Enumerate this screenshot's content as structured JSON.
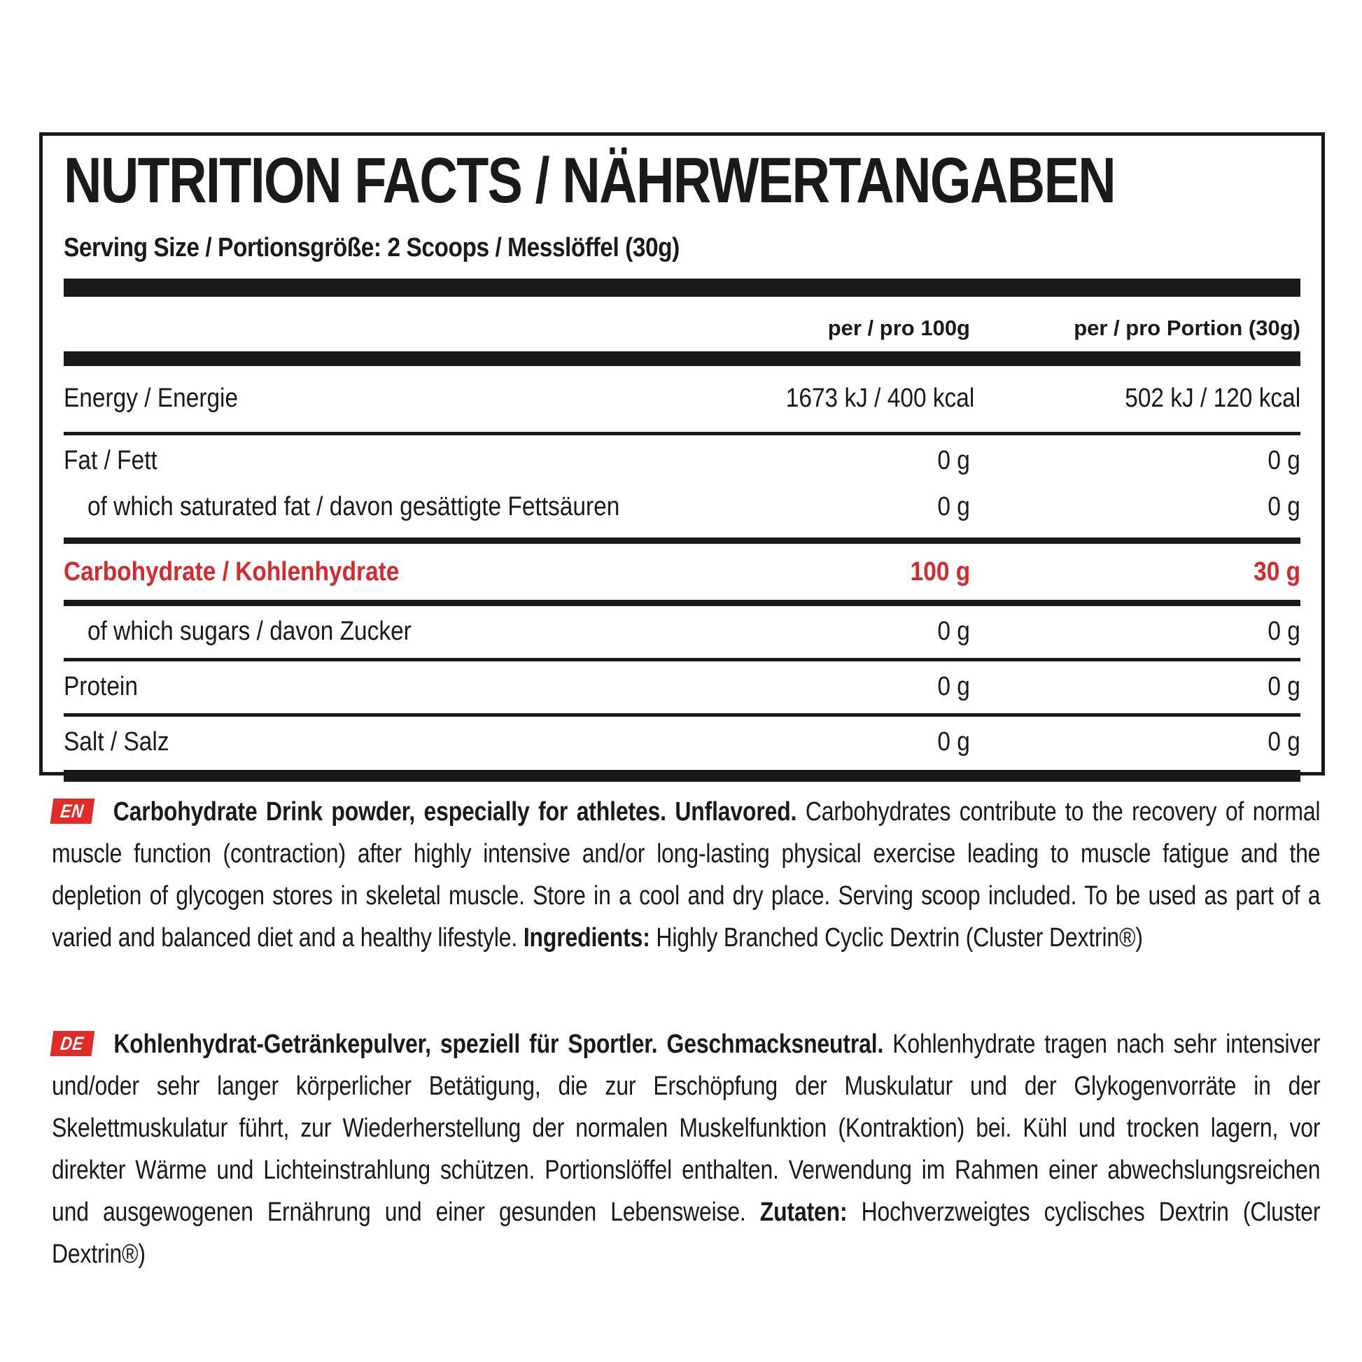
{
  "colors": {
    "accent_red": "#d6282e",
    "badge_red": "#e02b26",
    "ink_black": "#1c1a18"
  },
  "panel": {
    "title": "NUTRITION FACTS / NÄHRWERTANGABEN",
    "serving_line": "Serving Size / Portionsgröße: 2 Scoops / Messlöffel (30g)",
    "columns": [
      "per / pro 100g",
      "per / pro Portion (30g)"
    ],
    "rows": [
      {
        "label": "Energy / Energie",
        "per_100g": "1673 kJ / 400 kcal",
        "per_portion": "502 kJ / 120 kcal"
      },
      {
        "label": "Fat / Fett",
        "per_100g": "0 g",
        "per_portion": "0 g"
      },
      {
        "label": "of which saturated fat / davon gesättigte Fettsäuren",
        "per_100g": "0 g",
        "per_portion": "0 g"
      },
      {
        "label": "Carbohydrate / Kohlenhydrate",
        "per_100g": "100 g",
        "per_portion": "30 g"
      },
      {
        "label": "of which sugars / davon Zucker",
        "per_100g": "0 g",
        "per_portion": "0 g"
      },
      {
        "label": "Protein",
        "per_100g": "0 g",
        "per_portion": "0 g"
      },
      {
        "label": "Salt / Salz",
        "per_100g": "0 g",
        "per_portion": "0 g"
      }
    ]
  },
  "paragraphs": {
    "en": {
      "badge": "EN",
      "lead": "Carbohydrate Drink powder, especially for athletes. Unflavored.",
      "body": "Carbohydrates contribute to the recovery of normal muscle function (contraction) after highly intensive and/or long-lasting physical exercise leading to muscle fatigue and the depletion of glycogen stores in skeletal muscle. Store in a cool and dry place. Serving scoop included. To be used as part of a varied and balanced diet and a healthy lifestyle.",
      "ingredients_label": "Ingredients:",
      "ingredients": "Highly Branched Cyclic Dextrin (Cluster Dextrin®)"
    },
    "de": {
      "badge": "DE",
      "lead": "Kohlenhydrat-Getränkepulver, speziell für Sportler. Geschmacksneutral.",
      "body": "Kohlenhydrate tragen nach sehr intensiver und/oder sehr langer körperlicher Betätigung, die zur Erschöpfung der Muskulatur und der Glykogenvorräte in der Skelettmuskulatur führt, zur Wiederherstellung der normalen Muskelfunktion (Kontraktion) bei. Kühl und trocken lagern, vor direkter Wärme und Lichteinstrahlung schützen. Portionslöffel enthalten. Verwendung im Rahmen einer abwechslungsreichen und ausgewogenen Ernährung und einer gesunden Lebensweise.",
      "ingredients_label": "Zutaten:",
      "ingredients": "Hochverzweigtes cyclisches Dextrin (Cluster Dextrin®)"
    }
  }
}
